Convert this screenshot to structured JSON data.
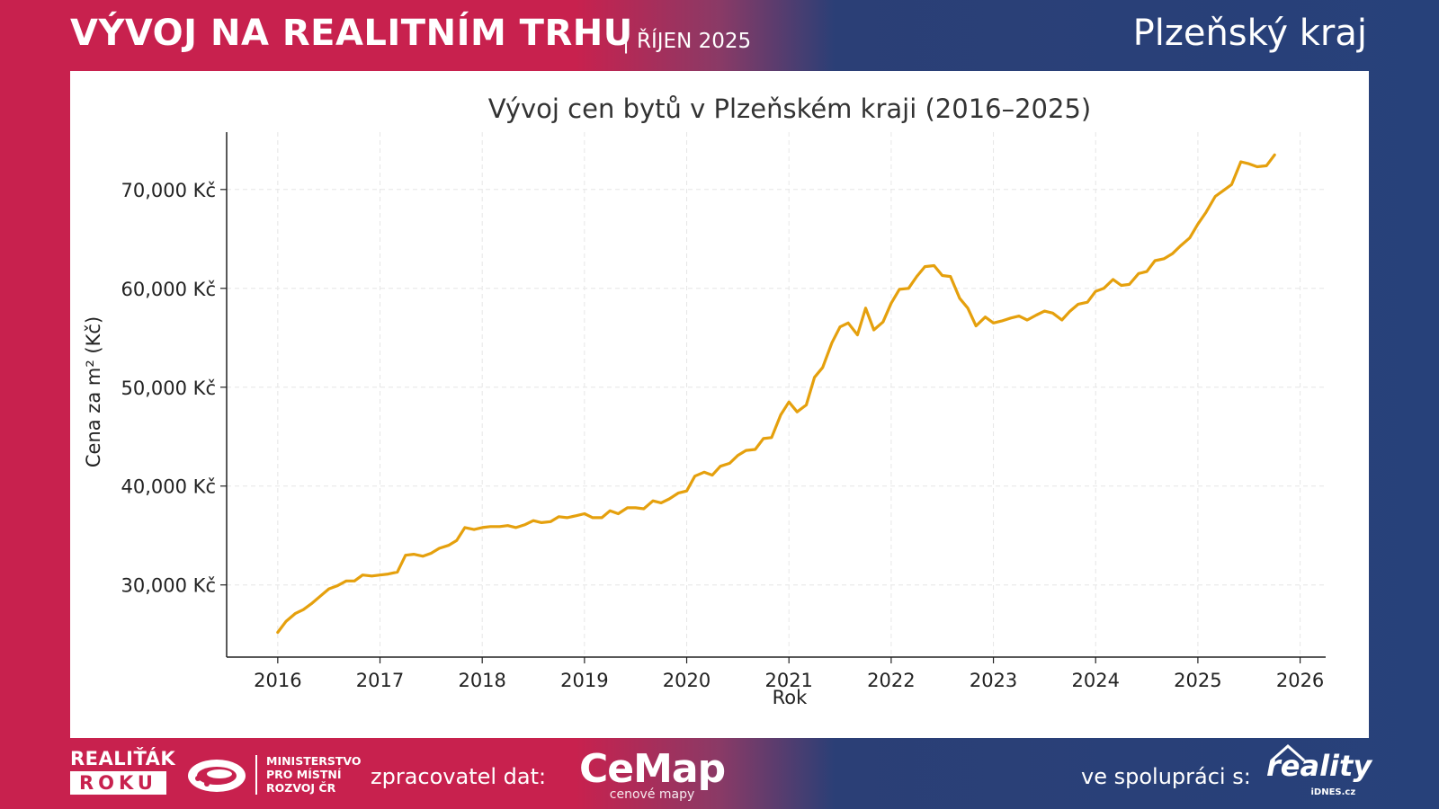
{
  "header": {
    "title": "VÝVOJ NA REALITNÍM TRHU",
    "separator": "|",
    "subtitle": "ŘÍJEN 2025",
    "region": "Plzeňský kraj"
  },
  "chart_data": {
    "type": "line",
    "title": "Vývoj cen bytů v Plzeňském kraji (2016–2025)",
    "xlabel": "Rok",
    "ylabel": "Cena za m² (Kč)",
    "xlim": [
      2015.5,
      2026.25
    ],
    "ylim": [
      22700,
      75800
    ],
    "x_ticks": [
      2016,
      2017,
      2018,
      2019,
      2020,
      2021,
      2022,
      2023,
      2024,
      2025,
      2026
    ],
    "x_tick_labels": [
      "2016",
      "2017",
      "2018",
      "2019",
      "2020",
      "2021",
      "2022",
      "2023",
      "2024",
      "2025",
      "2026"
    ],
    "y_ticks": [
      30000,
      40000,
      50000,
      60000,
      70000
    ],
    "y_tick_labels": [
      "30,000 Kč",
      "40,000 Kč",
      "50,000 Kč",
      "60,000 Kč",
      "70,000 Kč"
    ],
    "grid": true,
    "color": "#e5a00d",
    "series": [
      {
        "values": [
          [
            2016.0,
            25200
          ],
          [
            2016.08,
            26300
          ],
          [
            2016.17,
            27100
          ],
          [
            2016.25,
            27500
          ],
          [
            2016.33,
            28100
          ],
          [
            2016.42,
            28900
          ],
          [
            2016.5,
            29600
          ],
          [
            2016.58,
            29900
          ],
          [
            2016.67,
            30400
          ],
          [
            2016.75,
            30400
          ],
          [
            2016.83,
            31000
          ],
          [
            2016.92,
            30900
          ],
          [
            2017.0,
            31000
          ],
          [
            2017.08,
            31100
          ],
          [
            2017.17,
            31300
          ],
          [
            2017.25,
            33000
          ],
          [
            2017.33,
            33100
          ],
          [
            2017.42,
            32900
          ],
          [
            2017.5,
            33200
          ],
          [
            2017.58,
            33700
          ],
          [
            2017.67,
            34000
          ],
          [
            2017.75,
            34500
          ],
          [
            2017.83,
            35800
          ],
          [
            2017.92,
            35600
          ],
          [
            2018.0,
            35800
          ],
          [
            2018.08,
            35900
          ],
          [
            2018.17,
            35900
          ],
          [
            2018.25,
            36000
          ],
          [
            2018.33,
            35800
          ],
          [
            2018.42,
            36100
          ],
          [
            2018.5,
            36500
          ],
          [
            2018.58,
            36300
          ],
          [
            2018.67,
            36400
          ],
          [
            2018.75,
            36900
          ],
          [
            2018.83,
            36800
          ],
          [
            2018.92,
            37000
          ],
          [
            2019.0,
            37200
          ],
          [
            2019.08,
            36800
          ],
          [
            2019.17,
            36800
          ],
          [
            2019.25,
            37500
          ],
          [
            2019.33,
            37200
          ],
          [
            2019.42,
            37800
          ],
          [
            2019.5,
            37800
          ],
          [
            2019.58,
            37700
          ],
          [
            2019.67,
            38500
          ],
          [
            2019.75,
            38300
          ],
          [
            2019.83,
            38700
          ],
          [
            2019.92,
            39300
          ],
          [
            2020.0,
            39500
          ],
          [
            2020.08,
            41000
          ],
          [
            2020.17,
            41400
          ],
          [
            2020.25,
            41100
          ],
          [
            2020.33,
            42000
          ],
          [
            2020.42,
            42300
          ],
          [
            2020.5,
            43100
          ],
          [
            2020.58,
            43600
          ],
          [
            2020.67,
            43700
          ],
          [
            2020.75,
            44800
          ],
          [
            2020.83,
            44900
          ],
          [
            2020.92,
            47200
          ],
          [
            2021.0,
            48500
          ],
          [
            2021.08,
            47500
          ],
          [
            2021.17,
            48200
          ],
          [
            2021.25,
            51000
          ],
          [
            2021.33,
            52000
          ],
          [
            2021.42,
            54500
          ],
          [
            2021.5,
            56100
          ],
          [
            2021.58,
            56500
          ],
          [
            2021.67,
            55300
          ],
          [
            2021.75,
            58000
          ],
          [
            2021.83,
            55800
          ],
          [
            2021.92,
            56600
          ],
          [
            2022.0,
            58500
          ],
          [
            2022.08,
            59900
          ],
          [
            2022.17,
            60000
          ],
          [
            2022.25,
            61200
          ],
          [
            2022.33,
            62200
          ],
          [
            2022.42,
            62300
          ],
          [
            2022.5,
            61300
          ],
          [
            2022.58,
            61200
          ],
          [
            2022.67,
            59000
          ],
          [
            2022.75,
            58000
          ],
          [
            2022.83,
            56200
          ],
          [
            2022.92,
            57100
          ],
          [
            2023.0,
            56500
          ],
          [
            2023.08,
            56700
          ],
          [
            2023.17,
            57000
          ],
          [
            2023.25,
            57200
          ],
          [
            2023.33,
            56800
          ],
          [
            2023.42,
            57300
          ],
          [
            2023.5,
            57700
          ],
          [
            2023.58,
            57500
          ],
          [
            2023.67,
            56800
          ],
          [
            2023.75,
            57700
          ],
          [
            2023.83,
            58400
          ],
          [
            2023.92,
            58600
          ],
          [
            2024.0,
            59700
          ],
          [
            2024.08,
            60000
          ],
          [
            2024.17,
            60900
          ],
          [
            2024.25,
            60300
          ],
          [
            2024.33,
            60400
          ],
          [
            2024.42,
            61500
          ],
          [
            2024.5,
            61700
          ],
          [
            2024.58,
            62800
          ],
          [
            2024.67,
            63000
          ],
          [
            2024.75,
            63500
          ],
          [
            2024.83,
            64300
          ],
          [
            2024.92,
            65100
          ],
          [
            2025.0,
            66500
          ],
          [
            2025.08,
            67700
          ],
          [
            2025.17,
            69300
          ],
          [
            2025.25,
            69900
          ],
          [
            2025.33,
            70500
          ],
          [
            2025.42,
            72800
          ],
          [
            2025.5,
            72600
          ],
          [
            2025.58,
            72300
          ],
          [
            2025.67,
            72400
          ],
          [
            2025.75,
            73500
          ]
        ]
      }
    ]
  },
  "footer": {
    "logo_realitak_top": "REALIŤÁK",
    "logo_realitak_bottom": "ROKU",
    "ministry_line1": "MINISTERSTVO",
    "ministry_line2": "PRO MÍSTNÍ",
    "ministry_line3": "ROZVOJ ČR",
    "label_processor": "zpracovatel dat:",
    "cemap_name": "CeMap",
    "cemap_tag": "cenové mapy",
    "label_partner": "ve spolupráci s:",
    "reality_name": "reality",
    "reality_tag": "iDNES.cz"
  }
}
